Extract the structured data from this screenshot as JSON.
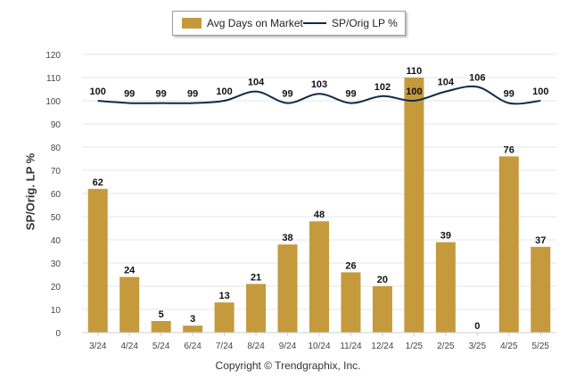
{
  "colors": {
    "bar": "#c49a3c",
    "line": "#0f2a46",
    "grid": "#e6e6e6",
    "axis_text": "#444444"
  },
  "legend": [
    {
      "label": "Avg Days on Market",
      "kind": "bar"
    },
    {
      "label": "SP/Orig LP %",
      "kind": "line"
    }
  ],
  "footer": "Copyright © Trendgraphix, Inc.",
  "chart_data": {
    "type": "bar",
    "ylabel": "SP/Orig. LP %",
    "ylim": [
      0,
      120
    ],
    "yticks": [
      0,
      10,
      20,
      30,
      40,
      50,
      60,
      70,
      80,
      90,
      100,
      110,
      120
    ],
    "grid": true,
    "legend_position": "top-center",
    "categories": [
      "3/24",
      "4/24",
      "5/24",
      "6/24",
      "7/24",
      "8/24",
      "9/24",
      "10/24",
      "11/24",
      "12/24",
      "1/25",
      "2/25",
      "3/25",
      "4/25",
      "5/25"
    ],
    "series": [
      {
        "name": "Avg Days on Market",
        "type": "bar",
        "values": [
          62,
          24,
          5,
          3,
          13,
          21,
          38,
          48,
          26,
          20,
          110,
          39,
          0,
          76,
          37
        ]
      },
      {
        "name": "SP/Orig LP %",
        "type": "line",
        "values": [
          100,
          99,
          99,
          99,
          100,
          104,
          99,
          103,
          99,
          102,
          100,
          104,
          106,
          99,
          100
        ]
      }
    ]
  }
}
